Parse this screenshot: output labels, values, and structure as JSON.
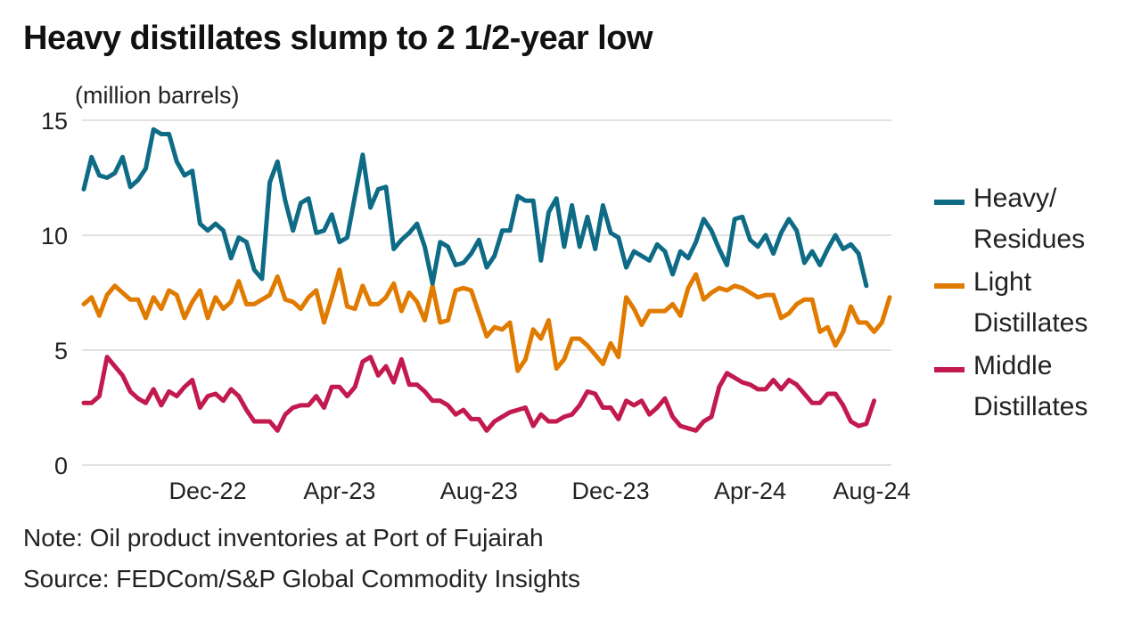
{
  "chart_data": {
    "type": "line",
    "title": "Heavy distillates slump to 2 1/2-year low",
    "ylabel": "(million barrels)",
    "xlabel": "",
    "ylim": [
      0,
      15
    ],
    "yticks": [
      "0",
      "5",
      "10",
      "15"
    ],
    "ytick_values": [
      0,
      5,
      10,
      15
    ],
    "xticks": [
      "Dec-22",
      "Apr-23",
      "Aug-23",
      "Dec-23",
      "Apr-24",
      "Aug-24"
    ],
    "xtick_positions": [
      16,
      33,
      51,
      68,
      86,
      104
    ],
    "grid": true,
    "legend_position": "right",
    "series": [
      {
        "name": "Heavy/\nResidues",
        "color": "#0e6b86",
        "values": [
          12.0,
          13.4,
          12.6,
          12.5,
          12.7,
          13.4,
          12.1,
          12.4,
          12.9,
          14.6,
          14.4,
          14.4,
          13.2,
          12.6,
          12.8,
          10.5,
          10.2,
          10.5,
          10.2,
          9.0,
          9.9,
          9.7,
          8.5,
          8.1,
          12.3,
          13.2,
          11.5,
          10.2,
          11.4,
          11.6,
          10.1,
          10.2,
          10.9,
          9.7,
          9.9,
          11.7,
          13.5,
          11.2,
          12.0,
          12.1,
          9.4,
          9.8,
          10.1,
          10.5,
          9.5,
          7.9,
          9.7,
          9.5,
          8.7,
          8.8,
          9.2,
          9.8,
          8.6,
          9.1,
          10.2,
          10.2,
          11.7,
          11.5,
          11.5,
          8.9,
          11.0,
          11.6,
          9.5,
          11.3,
          9.5,
          10.8,
          9.4,
          11.3,
          10.1,
          9.9,
          8.6,
          9.3,
          9.1,
          8.9,
          9.6,
          9.3,
          8.3,
          9.3,
          9.0,
          9.7,
          10.7,
          10.2,
          9.4,
          8.7,
          10.7,
          10.8,
          9.8,
          9.5,
          10.0,
          9.2,
          10.1,
          10.7,
          10.2,
          8.8,
          9.3,
          8.7,
          9.4,
          10.0,
          9.4,
          9.6,
          9.2,
          7.8
        ],
        "x_start_index": 0
      },
      {
        "name": "Light\nDistillates",
        "color": "#e07b00",
        "values": [
          7.0,
          7.3,
          6.5,
          7.4,
          7.8,
          7.5,
          7.2,
          7.2,
          6.4,
          7.3,
          6.8,
          7.6,
          7.4,
          6.4,
          7.1,
          7.6,
          6.4,
          7.3,
          6.8,
          7.1,
          8.0,
          7.0,
          7.0,
          7.2,
          7.4,
          8.2,
          7.2,
          7.1,
          6.8,
          7.3,
          7.6,
          6.2,
          7.3,
          8.5,
          6.9,
          6.8,
          7.8,
          7.0,
          7.0,
          7.3,
          7.9,
          6.7,
          7.5,
          7.1,
          6.3,
          7.8,
          6.2,
          6.3,
          7.6,
          7.7,
          7.6,
          6.6,
          5.6,
          6.0,
          5.9,
          6.2,
          4.1,
          4.6,
          5.9,
          5.5,
          6.3,
          4.2,
          4.6,
          5.5,
          5.5,
          5.2,
          4.8,
          4.4,
          5.3,
          4.7,
          7.3,
          6.8,
          6.1,
          6.7,
          6.7,
          6.7,
          7.0,
          6.5,
          7.7,
          8.3,
          7.2,
          7.5,
          7.7,
          7.6,
          7.8,
          7.7,
          7.5,
          7.3,
          7.4,
          7.4,
          6.4,
          6.6,
          7.0,
          7.2,
          7.2,
          5.8,
          6.0,
          5.2,
          5.8,
          6.9,
          6.2,
          6.2,
          5.8,
          6.2,
          7.3
        ],
        "x_start_index": 0
      },
      {
        "name": "Middle\nDistillates",
        "color": "#c2194f",
        "values": [
          2.7,
          2.7,
          3.0,
          4.7,
          4.3,
          3.9,
          3.2,
          2.9,
          2.7,
          3.3,
          2.6,
          3.2,
          3.0,
          3.4,
          3.7,
          2.5,
          3.0,
          3.1,
          2.8,
          3.3,
          3.0,
          2.4,
          1.9,
          1.9,
          1.9,
          1.5,
          2.2,
          2.5,
          2.6,
          2.6,
          3.0,
          2.5,
          3.4,
          3.4,
          3.0,
          3.4,
          4.5,
          4.7,
          3.9,
          4.3,
          3.6,
          4.6,
          3.5,
          3.5,
          3.2,
          2.8,
          2.8,
          2.6,
          2.2,
          2.4,
          2.0,
          2.0,
          1.5,
          1.9,
          2.1,
          2.3,
          2.4,
          2.5,
          1.7,
          2.2,
          1.9,
          1.9,
          2.1,
          2.2,
          2.6,
          3.2,
          3.1,
          2.5,
          2.5,
          2.0,
          2.8,
          2.6,
          2.8,
          2.2,
          2.5,
          2.9,
          2.1,
          1.7,
          1.6,
          1.5,
          1.9,
          2.1,
          3.4,
          4.0,
          3.8,
          3.6,
          3.5,
          3.3,
          3.3,
          3.7,
          3.3,
          3.7,
          3.5,
          3.1,
          2.7,
          2.7,
          3.1,
          3.1,
          2.6,
          1.9,
          1.7,
          1.8,
          2.8
        ],
        "x_start_index": 0
      }
    ],
    "note": "Note: Oil product inventories at Port of Fujairah",
    "source": "Source: FEDCom/S&P Global Commodity Insights"
  }
}
